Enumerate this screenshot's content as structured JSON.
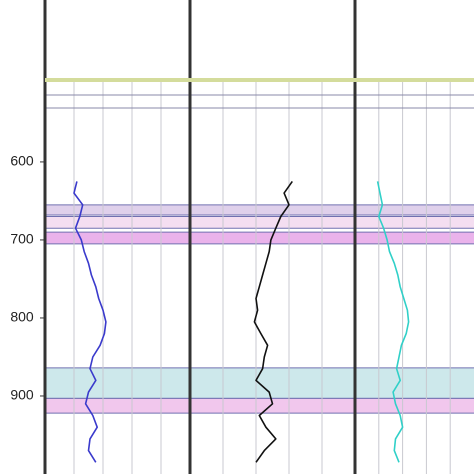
{
  "chart_data": {
    "type": "well-log",
    "ylim": [
      495,
      1000
    ],
    "yticks": [
      600,
      700,
      800,
      900
    ],
    "grid": true,
    "depths": [
      625,
      640,
      655,
      670,
      685,
      700,
      715,
      730,
      745,
      760,
      775,
      790,
      805,
      820,
      835,
      850,
      865,
      880,
      895,
      910,
      925,
      940,
      955,
      970,
      985
    ],
    "zones": [
      {
        "range": [
          655,
          668
        ],
        "color": "#d9c8e8"
      },
      {
        "range": [
          670,
          685
        ],
        "color": "#f2d8ee"
      },
      {
        "range": [
          690,
          705
        ],
        "color": "#e6a6e8"
      },
      {
        "range": [
          864,
          903
        ],
        "color": "#c4e4e8"
      },
      {
        "range": [
          903,
          922
        ],
        "color": "#efbdea"
      }
    ],
    "tracks": [
      {
        "xlim": [
          0,
          100
        ],
        "series": [
          {
            "color": "#3a3acc",
            "values": [
              22,
              20,
              26,
              24,
              21,
              25,
              27,
              30,
              32,
              35,
              37,
              40,
              42,
              41,
              38,
              33,
              31,
              35,
              30,
              28,
              33,
              36,
              31,
              30,
              35
            ]
          }
        ]
      },
      {
        "xlim": [
          0,
          100
        ],
        "series": [
          {
            "color": "#111111",
            "values": [
              62,
              57,
              60,
              55,
              52,
              49,
              48,
              46,
              44,
              42,
              40,
              41,
              39,
              43,
              47,
              45,
              44,
              40,
              48,
              50,
              42,
              46,
              52,
              45,
              40
            ]
          }
        ]
      },
      {
        "xlim": [
          0,
          100
        ],
        "series": [
          {
            "color": "#30d0c8",
            "values": [
              19,
              21,
              23,
              20,
              24,
              27,
              29,
              33,
              36,
              38,
              41,
              44,
              45,
              43,
              39,
              37,
              35,
              38,
              32,
              34,
              38,
              40,
              34,
              33,
              37
            ]
          }
        ]
      }
    ]
  }
}
